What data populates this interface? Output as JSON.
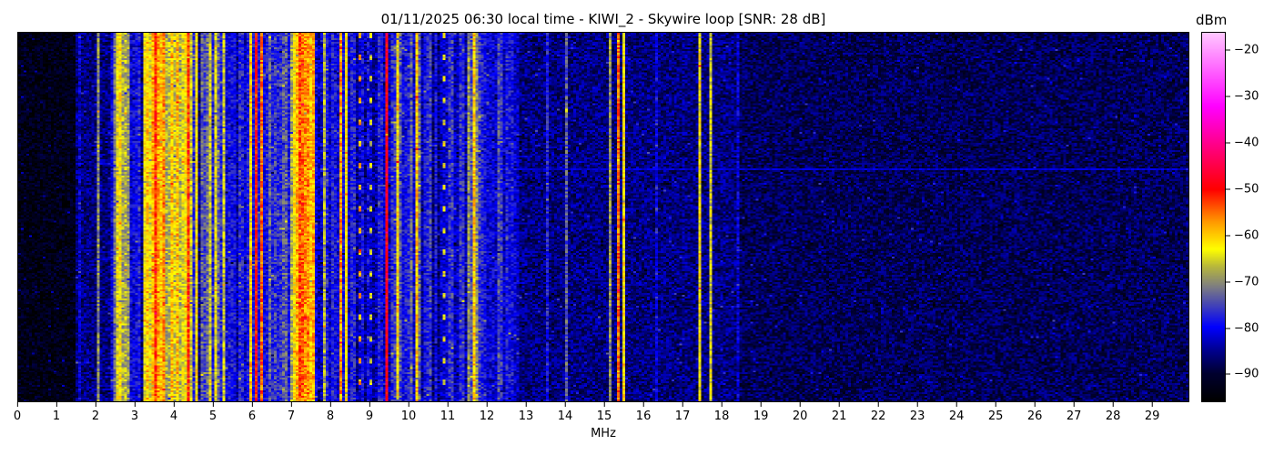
{
  "chart_data": {
    "type": "heatmap",
    "title": "01/11/2025 06:30 local time - KIWI_2 - Skywire loop [SNR: 28 dB]",
    "xlabel": "MHz",
    "xlim": [
      0,
      30
    ],
    "xticks": [
      "0",
      "1",
      "2",
      "3",
      "4",
      "5",
      "6",
      "7",
      "8",
      "9",
      "10",
      "11",
      "12",
      "13",
      "14",
      "15",
      "16",
      "17",
      "18",
      "19",
      "20",
      "21",
      "22",
      "23",
      "24",
      "25",
      "26",
      "27",
      "28",
      "29"
    ],
    "colorbar": {
      "label": "dBm",
      "range": [
        -96,
        -16
      ],
      "ticks": [
        "−20",
        "−30",
        "−40",
        "−50",
        "−60",
        "−70",
        "−80",
        "−90"
      ],
      "tick_values": [
        -20,
        -30,
        -40,
        -50,
        -60,
        -70,
        -80,
        -90
      ],
      "colormap": [
        [
          -96,
          "#000000"
        ],
        [
          -90,
          "#000030"
        ],
        [
          -85,
          "#000090"
        ],
        [
          -80,
          "#0000ff"
        ],
        [
          -75,
          "#4646b4"
        ],
        [
          -71,
          "#808080"
        ],
        [
          -67,
          "#b4b440"
        ],
        [
          -63,
          "#ffff00"
        ],
        [
          -57,
          "#ff9900"
        ],
        [
          -50,
          "#ff0000"
        ],
        [
          -42,
          "#ff0070"
        ],
        [
          -32,
          "#ff00ff"
        ],
        [
          -16,
          "#ffc8ff"
        ]
      ]
    },
    "noise_floor": [
      {
        "from": 0,
        "to": 1.5,
        "level": -93
      },
      {
        "from": 1.5,
        "to": 2.4,
        "level": -86
      },
      {
        "from": 2.4,
        "to": 12.8,
        "level": -81
      },
      {
        "from": 12.8,
        "to": 18.5,
        "level": -86
      },
      {
        "from": 18.5,
        "to": 30,
        "level": -88
      }
    ],
    "bands": [
      {
        "from": 2.45,
        "to": 2.85,
        "level": -69
      },
      {
        "from": 3.2,
        "to": 4.45,
        "level": -63
      },
      {
        "from": 3.45,
        "to": 3.75,
        "level": -55
      },
      {
        "from": 4.7,
        "to": 5.3,
        "level": -74
      },
      {
        "from": 6.3,
        "to": 6.9,
        "level": -76
      },
      {
        "from": 7.0,
        "to": 7.6,
        "level": -64
      },
      {
        "from": 7.2,
        "to": 7.45,
        "level": -54
      },
      {
        "from": 9.6,
        "to": 10.3,
        "level": -78
      },
      {
        "from": 11.5,
        "to": 11.8,
        "level": -72
      }
    ],
    "signals": [
      {
        "f": 1.55,
        "level": -82
      },
      {
        "f": 2.05,
        "level": -70
      },
      {
        "f": 2.5,
        "level": -64
      },
      {
        "f": 2.6,
        "level": -62
      },
      {
        "f": 3.3,
        "level": -60
      },
      {
        "f": 3.9,
        "level": -62
      },
      {
        "f": 4.3,
        "level": -52
      },
      {
        "f": 4.55,
        "level": -62
      },
      {
        "f": 4.85,
        "level": -65
      },
      {
        "f": 5.0,
        "level": -64
      },
      {
        "f": 5.25,
        "level": -66
      },
      {
        "f": 5.95,
        "level": -60
      },
      {
        "f": 6.1,
        "level": -50
      },
      {
        "f": 6.2,
        "level": -55
      },
      {
        "f": 7.1,
        "level": -60
      },
      {
        "f": 7.55,
        "level": -58
      },
      {
        "f": 7.8,
        "level": -68
      },
      {
        "f": 8.2,
        "level": -57
      },
      {
        "f": 8.4,
        "level": -62
      },
      {
        "f": 8.7,
        "level": -58,
        "intermittent": true
      },
      {
        "f": 9.0,
        "level": -66,
        "intermittent": true
      },
      {
        "f": 9.4,
        "level": -48
      },
      {
        "f": 9.7,
        "level": -62
      },
      {
        "f": 10.2,
        "level": -60
      },
      {
        "f": 10.9,
        "level": -64,
        "intermittent": true
      },
      {
        "f": 11.65,
        "level": -60
      },
      {
        "f": 12.3,
        "level": -75
      },
      {
        "f": 12.5,
        "level": -78
      },
      {
        "f": 13.5,
        "level": -78
      },
      {
        "f": 14.0,
        "level": -74
      },
      {
        "f": 15.15,
        "level": -70
      },
      {
        "f": 15.35,
        "level": -55
      },
      {
        "f": 15.5,
        "level": -62
      },
      {
        "f": 16.3,
        "level": -78,
        "intermittent": true
      },
      {
        "f": 17.45,
        "level": -63
      },
      {
        "f": 17.7,
        "level": -65
      },
      {
        "f": 18.4,
        "level": -82
      }
    ],
    "horizontal_line": {
      "from": 12.5,
      "to": 30,
      "level": -82,
      "time_fraction": 0.37
    }
  }
}
